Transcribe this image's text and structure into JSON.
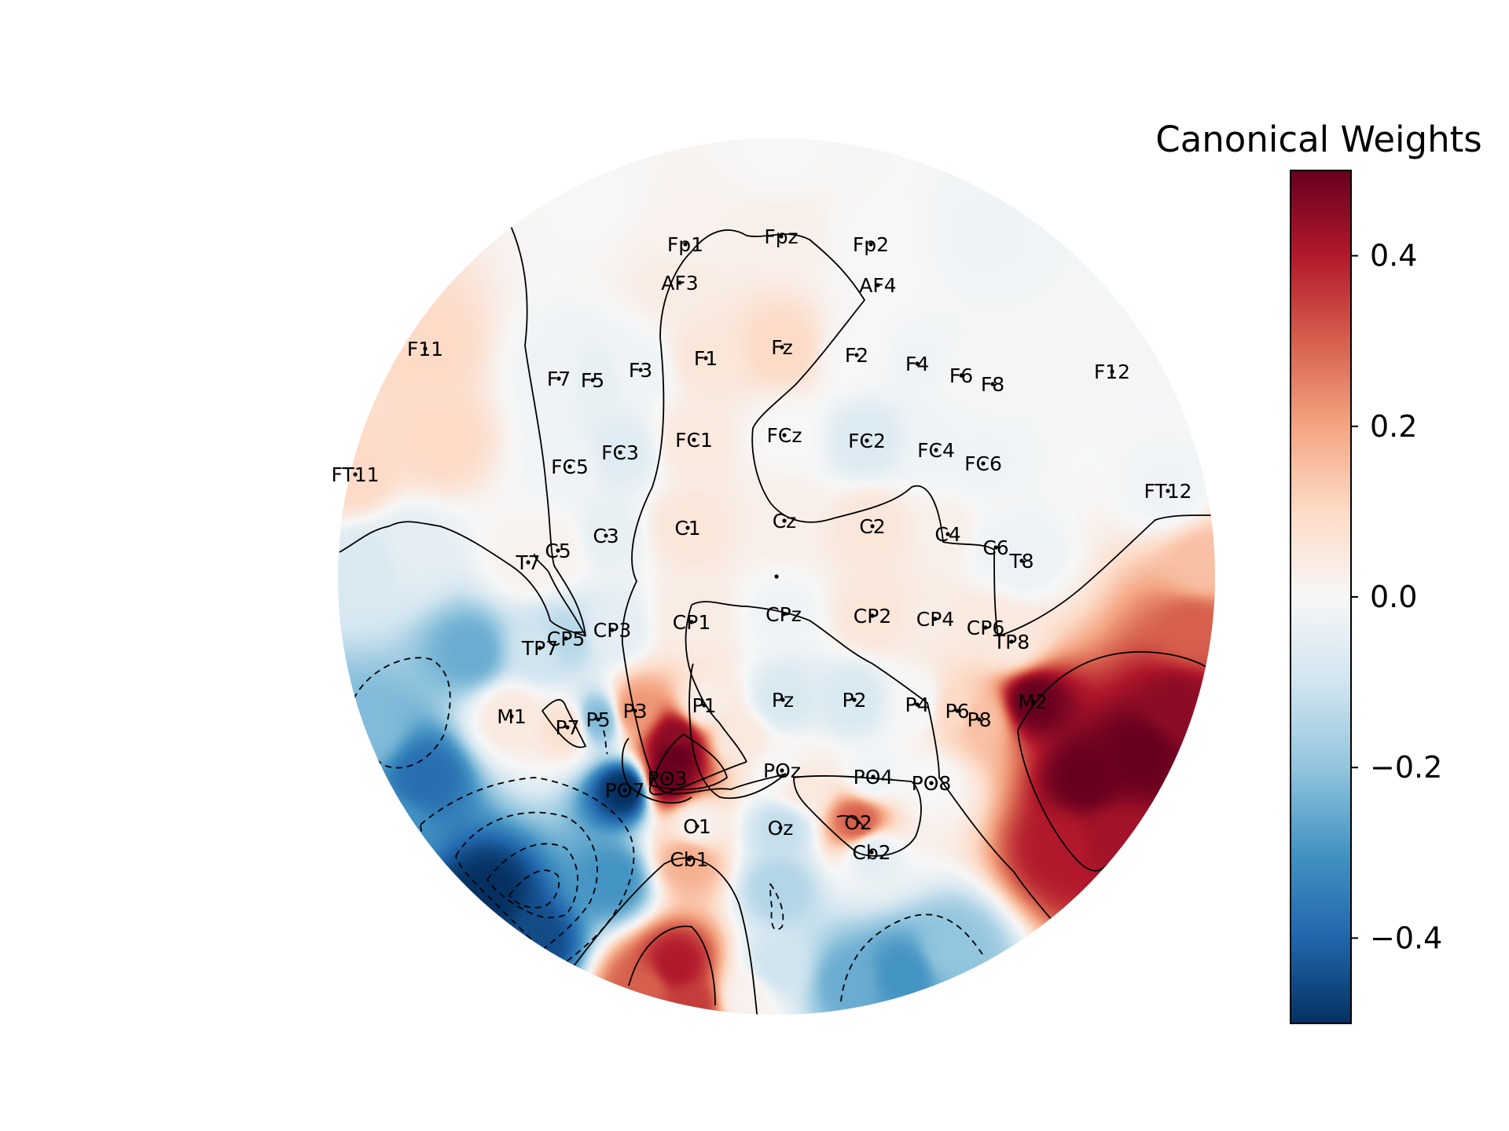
{
  "chart_data": {
    "type": "heatmap",
    "subtype": "eeg-topomap",
    "colorbar": {
      "title": "Canonical Weights",
      "colormap": "RdBu_r",
      "vmin": -0.5,
      "vmax": 0.5,
      "ticks": [
        -0.4,
        -0.2,
        0.0,
        0.2,
        0.4
      ],
      "tick_labels": [
        "−0.4",
        "−0.2",
        "0.0",
        "0.2",
        "0.4"
      ]
    },
    "channels": [
      {
        "name": "Fp1",
        "value": 0.02
      },
      {
        "name": "Fpz",
        "value": 0.03
      },
      {
        "name": "Fp2",
        "value": 0.0
      },
      {
        "name": "AF3",
        "value": 0.04
      },
      {
        "name": "AF4",
        "value": 0.0
      },
      {
        "name": "F11",
        "value": 0.1
      },
      {
        "name": "F7",
        "value": -0.02
      },
      {
        "name": "F5",
        "value": -0.04
      },
      {
        "name": "F3",
        "value": -0.02
      },
      {
        "name": "F1",
        "value": 0.06
      },
      {
        "name": "Fz",
        "value": 0.1
      },
      {
        "name": "F2",
        "value": 0.0
      },
      {
        "name": "F4",
        "value": -0.02
      },
      {
        "name": "F6",
        "value": -0.01
      },
      {
        "name": "F8",
        "value": -0.01
      },
      {
        "name": "F12",
        "value": -0.01
      },
      {
        "name": "FT11",
        "value": 0.1
      },
      {
        "name": "FC5",
        "value": -0.02
      },
      {
        "name": "FC3",
        "value": -0.06
      },
      {
        "name": "FC1",
        "value": 0.05
      },
      {
        "name": "FCz",
        "value": 0.0
      },
      {
        "name": "FC2",
        "value": -0.07
      },
      {
        "name": "FC4",
        "value": -0.02
      },
      {
        "name": "FC6",
        "value": -0.02
      },
      {
        "name": "FT12",
        "value": -0.02
      },
      {
        "name": "T7",
        "value": 0.02
      },
      {
        "name": "C5",
        "value": 0.02
      },
      {
        "name": "C3",
        "value": -0.04
      },
      {
        "name": "C1",
        "value": 0.06
      },
      {
        "name": "Cz",
        "value": 0.03
      },
      {
        "name": "C2",
        "value": 0.06
      },
      {
        "name": "C4",
        "value": 0.03
      },
      {
        "name": "C6",
        "value": -0.02
      },
      {
        "name": "T8",
        "value": -0.03
      },
      {
        "name": "TP7",
        "value": -0.1
      },
      {
        "name": "CP5",
        "value": -0.14
      },
      {
        "name": "CP3",
        "value": -0.05
      },
      {
        "name": "CP1",
        "value": 0.04
      },
      {
        "name": "CPz",
        "value": -0.02
      },
      {
        "name": "CP2",
        "value": 0.06
      },
      {
        "name": "CP4",
        "value": 0.04
      },
      {
        "name": "CP6",
        "value": 0.05
      },
      {
        "name": "TP8",
        "value": 0.05
      },
      {
        "name": "M1",
        "value": 0.05
      },
      {
        "name": "P7",
        "value": 0.08
      },
      {
        "name": "P5",
        "value": -0.22
      },
      {
        "name": "P3",
        "value": 0.22
      },
      {
        "name": "P1",
        "value": 0.03
      },
      {
        "name": "Pz",
        "value": -0.08
      },
      {
        "name": "P2",
        "value": -0.08
      },
      {
        "name": "P4",
        "value": -0.01
      },
      {
        "name": "P6",
        "value": 0.1
      },
      {
        "name": "P8",
        "value": 0.15
      },
      {
        "name": "M2",
        "value": 0.5
      },
      {
        "name": "PO7",
        "value": -0.5
      },
      {
        "name": "PO3",
        "value": 0.5
      },
      {
        "name": "POz",
        "value": 0.0
      },
      {
        "name": "PO4",
        "value": -0.02
      },
      {
        "name": "PO8",
        "value": 0.0
      },
      {
        "name": "O1",
        "value": 0.02
      },
      {
        "name": "Oz",
        "value": -0.12
      },
      {
        "name": "O2",
        "value": 0.3
      },
      {
        "name": "Cb1",
        "value": 0.18
      },
      {
        "name": "Cb2",
        "value": -0.05
      }
    ]
  }
}
